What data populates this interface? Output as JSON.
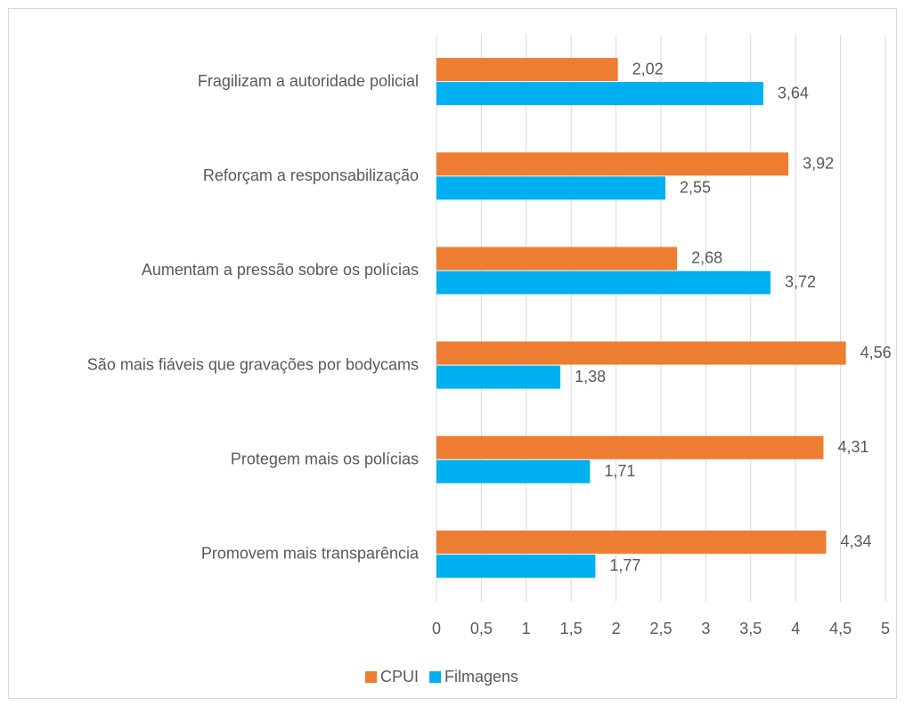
{
  "chart_data": {
    "type": "hbar",
    "categories": [
      "Fragilizam a autoridade policial",
      "Reforçam a responsabilização",
      "Aumentam a pressão sobre os polícias",
      "São mais fiáveis que gravações por bodycams",
      "Protegem mais os polícias",
      "Promovem mais transparência"
    ],
    "series": [
      {
        "name": "CPUI",
        "color": "#ed7d31",
        "values": [
          2.02,
          3.92,
          2.68,
          4.56,
          4.31,
          4.34
        ],
        "value_labels": [
          "2,02",
          "3,92",
          "2,68",
          "4,56",
          "4,31",
          "4,34"
        ]
      },
      {
        "name": "Filmagens",
        "color": "#00b0f0",
        "values": [
          3.64,
          2.55,
          3.72,
          1.38,
          1.71,
          1.77
        ],
        "value_labels": [
          "3,64",
          "2,55",
          "3,72",
          "1,38",
          "1,71",
          "1,77"
        ]
      }
    ],
    "xlim": [
      0,
      5
    ],
    "xticks": [
      0,
      {
        "value": 0.5,
        "label": "0,5"
      },
      1,
      {
        "value": 1.5,
        "label": "1,5"
      },
      2,
      {
        "value": 2.5,
        "label": "2,5"
      },
      3,
      {
        "value": 3.5,
        "label": "3,5"
      },
      4,
      {
        "value": 4.5,
        "label": "4,5"
      },
      5
    ],
    "grid": true,
    "legend": "bottom"
  }
}
